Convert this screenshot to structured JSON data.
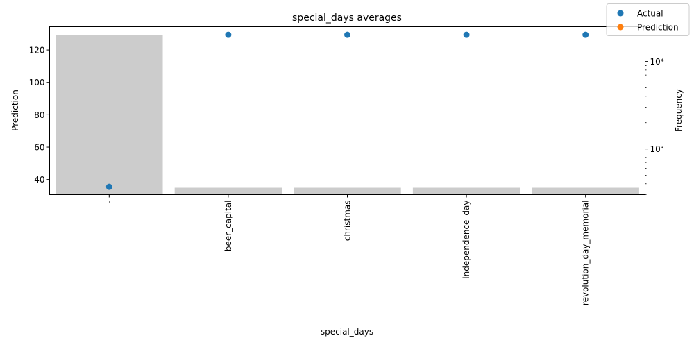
{
  "chart_data": {
    "type": "bar",
    "title": "special_days averages",
    "xlabel": "special_days",
    "ylabel": "Prediction",
    "y2label": "Frequency",
    "categories": [
      "-",
      "beer_capital",
      "christmas",
      "independence_day",
      "revolution_day_memorial"
    ],
    "ylim": [
      30.65,
      134.4
    ],
    "y_ticks": [
      40,
      60,
      80,
      100,
      120
    ],
    "y2_scale": "log",
    "y2lim": [
      300,
      25000
    ],
    "y2_ticks": [
      {
        "value": 1000,
        "label": "10³"
      },
      {
        "value": 10000,
        "label": "10⁴"
      }
    ],
    "frequency": {
      "name": "Frequency",
      "values": [
        20000,
        360,
        360,
        360,
        360
      ],
      "color": "#cccccc"
    },
    "series": [
      {
        "name": "Actual",
        "color": "#1f77b4",
        "values": [
          35.5,
          129.4,
          129.4,
          129.4,
          129.4
        ]
      },
      {
        "name": "Prediction",
        "color": "#ff7f0e",
        "values": [
          null,
          null,
          null,
          null,
          null
        ]
      }
    ],
    "legend": {
      "placement": "top-right",
      "entries": [
        "Actual",
        "Prediction"
      ]
    }
  }
}
